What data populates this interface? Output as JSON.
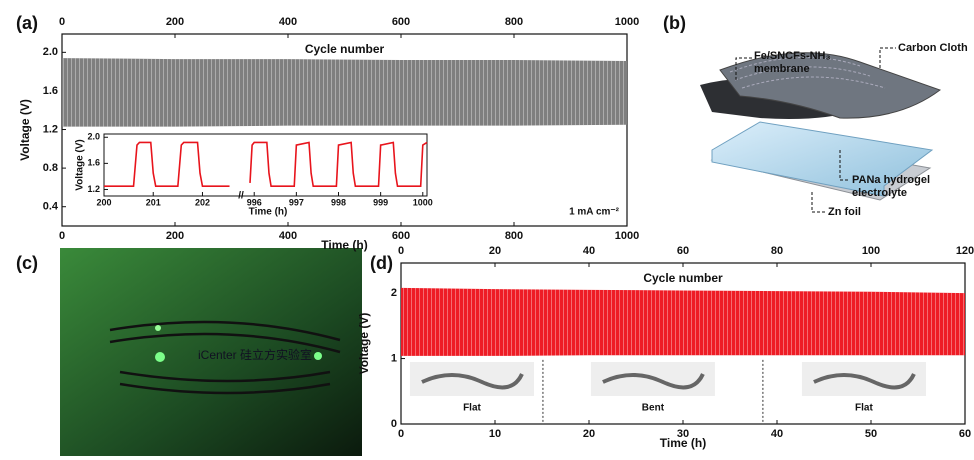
{
  "panels": {
    "labels": [
      "(a)",
      "(b)",
      "(c)",
      "(d)"
    ],
    "schematic": {
      "membrane": "Fe/SNCFs-NH₃",
      "membrane_2": "membrane",
      "carbon_cloth": "Carbon Cloth",
      "electrolyte": "PANa hydrogel",
      "electrolyte_2": "electrolyte",
      "zn": "Zn foil"
    },
    "photo_text": "iCenter 硅立方实验室"
  },
  "chart_data": [
    {
      "type": "band",
      "xlabel": "Time (h)",
      "ylabel": "Voltage (V)",
      "x2label": "Cycle number",
      "annotation": "1 mA cm⁻²",
      "x": [
        0,
        200,
        400,
        600,
        800,
        1000
      ],
      "high": [
        1.94,
        1.93,
        1.93,
        1.92,
        1.92,
        1.91
      ],
      "low": [
        1.23,
        1.23,
        1.24,
        1.24,
        1.24,
        1.25
      ],
      "color": "#7f7f7f",
      "xlim": [
        0,
        1000
      ],
      "xticks": [
        0,
        200,
        400,
        600,
        800,
        1000
      ],
      "x2lim": [
        0,
        1000
      ],
      "x2ticks": [
        0,
        200,
        400,
        600,
        800,
        1000
      ],
      "ylim": [
        0.2,
        2.19
      ],
      "yticks": [
        0.4,
        0.8,
        1.2,
        1.6,
        {
          "value": 2,
          "label": "2.0"
        }
      ]
    },
    {
      "type": "line",
      "xlabel": "Time (h)",
      "ylabel": "Voltage (V)",
      "color": "#e8141c",
      "ylim": [
        1.1,
        2.05
      ],
      "yticks": [
        1.2,
        1.6,
        {
          "value": 2,
          "label": "2.0"
        }
      ],
      "segments": [
        {
          "xlim": [
            200,
            202.6
          ],
          "xticks": [
            200,
            201,
            202
          ],
          "x": [
            200.0,
            200.6,
            200.67,
            200.72,
            200.95,
            201.0,
            201.05,
            201.5,
            201.57,
            201.62,
            201.9,
            201.95,
            202.0,
            202.55
          ],
          "values": [
            1.25,
            1.25,
            1.88,
            1.92,
            1.92,
            1.45,
            1.25,
            1.25,
            1.88,
            1.92,
            1.92,
            1.45,
            1.25,
            1.25
          ]
        },
        {
          "xlim": [
            995.9,
            1000.1
          ],
          "xticks": [
            996,
            997,
            998,
            999,
            1000
          ],
          "x": [
            995.9,
            995.95,
            996.0,
            996.3,
            996.35,
            996.4,
            996.95,
            997.0,
            997.3,
            997.35,
            997.4,
            997.95,
            998.0,
            998.3,
            998.35,
            998.4,
            998.95,
            999.0,
            999.3,
            999.35,
            999.4,
            999.95,
            1000.0,
            1000.1
          ],
          "values": [
            1.3,
            1.88,
            1.92,
            1.92,
            1.45,
            1.25,
            1.25,
            1.88,
            1.92,
            1.45,
            1.25,
            1.25,
            1.88,
            1.92,
            1.45,
            1.25,
            1.25,
            1.88,
            1.92,
            1.45,
            1.25,
            1.25,
            1.88,
            1.92
          ]
        }
      ]
    },
    {
      "type": "band",
      "xlabel": "Time (h)",
      "ylabel": "Voltage (V)",
      "x2label": "Cycle number",
      "x": [
        0,
        10,
        20,
        30,
        40,
        50,
        60
      ],
      "high": [
        2.08,
        2.06,
        2.05,
        2.04,
        2.03,
        2.02,
        2.0
      ],
      "low": [
        1.04,
        1.04,
        1.05,
        1.05,
        1.05,
        1.05,
        1.05
      ],
      "color": "#ee1c25",
      "xlim": [
        0,
        60
      ],
      "xticks": [
        0,
        10,
        20,
        30,
        40,
        50,
        60
      ],
      "x2lim": [
        0,
        120
      ],
      "x2ticks": [
        0,
        20,
        40,
        60,
        80,
        100,
        120
      ],
      "ylim": [
        0,
        2.46
      ],
      "yticks": [
        0,
        1,
        2
      ],
      "dividers": [
        15.1,
        38.5
      ],
      "annotations": [
        "Flat",
        "Bent",
        "Flat"
      ]
    }
  ]
}
